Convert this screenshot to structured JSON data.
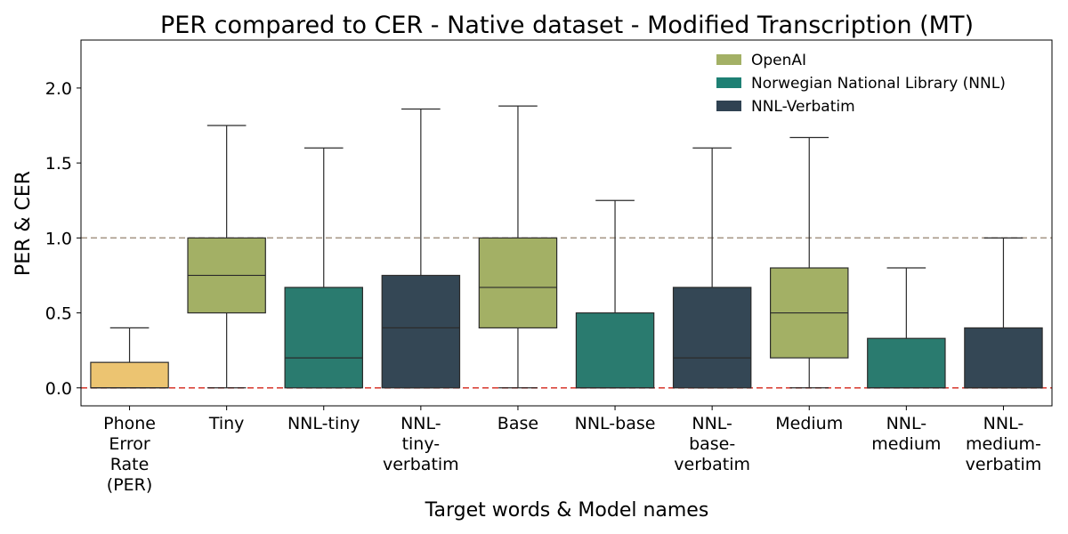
{
  "chart_data": {
    "type": "box",
    "title": "PER compared to CER  - Native dataset - Modified Transcription (MT)",
    "xlabel": "Target words  &  Model names",
    "ylabel": "PER & CER",
    "ylim": [
      -0.12,
      2.32
    ],
    "yticks": [
      "0.0",
      "0.5",
      "1.0",
      "1.5",
      "2.0"
    ],
    "grid": false,
    "legend_position": "top-right",
    "reference_lines": [
      {
        "y": 1.0,
        "color": "#a89a8a",
        "style": "dashed"
      },
      {
        "y": 0.0,
        "color": "#d9453b",
        "style": "dashed"
      }
    ],
    "legend": [
      {
        "label": "OpenAI",
        "color": "#a3b065"
      },
      {
        "label": "Norwegian National Library (NNL)",
        "color": "#1e8074"
      },
      {
        "label": "NNL-Verbatim",
        "color": "#304252"
      }
    ],
    "categories": [
      {
        "lines": [
          "Phone",
          "Error",
          "Rate",
          "(PER)"
        ],
        "color": "#ecc471",
        "min": 0.0,
        "q1": 0.0,
        "median": 0.0,
        "q3": 0.17,
        "max": 0.4
      },
      {
        "lines": [
          "Tiny"
        ],
        "color": "#a3b065",
        "min": 0.0,
        "q1": 0.5,
        "median": 0.75,
        "q3": 1.0,
        "max": 1.75
      },
      {
        "lines": [
          "NNL-tiny"
        ],
        "color": "#2a7b6f",
        "min": 0.0,
        "q1": 0.0,
        "median": 0.2,
        "q3": 0.67,
        "max": 1.6
      },
      {
        "lines": [
          "NNL-",
          "tiny-",
          "verbatim"
        ],
        "color": "#344755",
        "min": 0.0,
        "q1": 0.0,
        "median": 0.4,
        "q3": 0.75,
        "max": 1.86
      },
      {
        "lines": [
          "Base"
        ],
        "color": "#a3b065",
        "min": 0.0,
        "q1": 0.4,
        "median": 0.67,
        "q3": 1.0,
        "max": 1.88
      },
      {
        "lines": [
          "NNL-base"
        ],
        "color": "#2a7b6f",
        "min": 0.0,
        "q1": 0.0,
        "median": 0.0,
        "q3": 0.5,
        "max": 1.25
      },
      {
        "lines": [
          "NNL-",
          "base-",
          "verbatim"
        ],
        "color": "#344755",
        "min": 0.0,
        "q1": 0.0,
        "median": 0.2,
        "q3": 0.67,
        "max": 1.6
      },
      {
        "lines": [
          "Medium"
        ],
        "color": "#a3b065",
        "min": 0.0,
        "q1": 0.2,
        "median": 0.5,
        "q3": 0.8,
        "max": 1.67
      },
      {
        "lines": [
          "NNL-",
          "medium"
        ],
        "color": "#2a7b6f",
        "min": 0.0,
        "q1": 0.0,
        "median": 0.0,
        "q3": 0.33,
        "max": 0.8
      },
      {
        "lines": [
          "NNL-",
          "medium-",
          "verbatim"
        ],
        "color": "#344755",
        "min": 0.0,
        "q1": 0.0,
        "median": 0.0,
        "q3": 0.4,
        "max": 1.0
      }
    ]
  }
}
